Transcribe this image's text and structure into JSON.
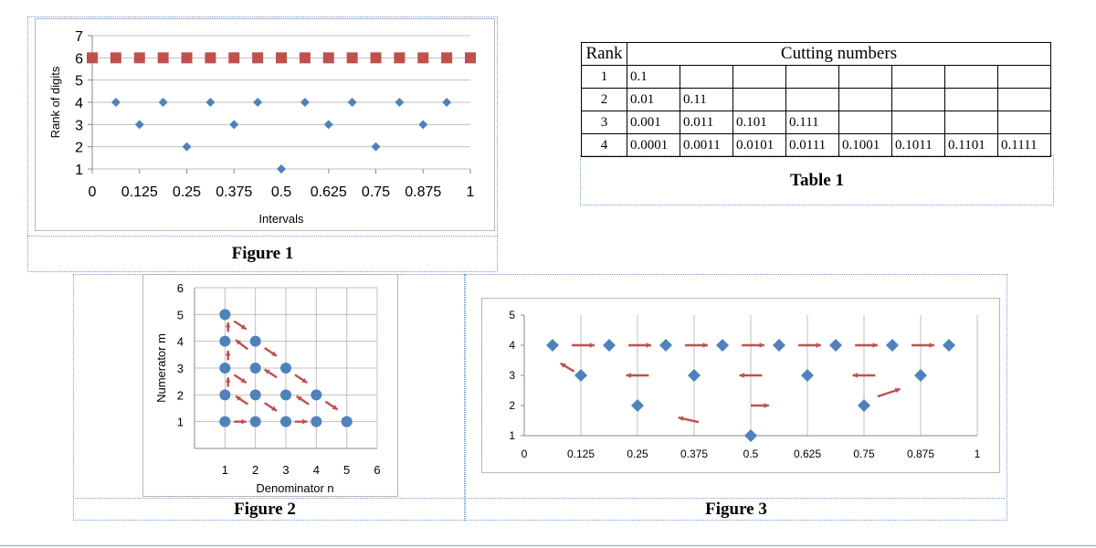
{
  "figure1": {
    "caption": "Figure 1",
    "chart_data": {
      "type": "scatter",
      "xlabel": "Intervals",
      "ylabel": "Rank of digits",
      "xlim": [
        0,
        1
      ],
      "ylim": [
        1,
        7
      ],
      "x_ticks": [
        "0",
        "0.125",
        "0.25",
        "0.375",
        "0.5",
        "0.625",
        "0.75",
        "0.875",
        "1"
      ],
      "y_ticks": [
        "1",
        "2",
        "3",
        "4",
        "5",
        "6",
        "7"
      ],
      "grid": "horizontal",
      "series": [
        {
          "marker": "diamond",
          "color": "#4f81bd",
          "points": [
            [
              0.0625,
              4
            ],
            [
              0.125,
              3
            ],
            [
              0.1875,
              4
            ],
            [
              0.25,
              2
            ],
            [
              0.3125,
              4
            ],
            [
              0.375,
              3
            ],
            [
              0.4375,
              4
            ],
            [
              0.5,
              1
            ],
            [
              0.5625,
              4
            ],
            [
              0.625,
              3
            ],
            [
              0.6875,
              4
            ],
            [
              0.75,
              2
            ],
            [
              0.8125,
              4
            ],
            [
              0.875,
              3
            ],
            [
              0.9375,
              4
            ]
          ]
        },
        {
          "marker": "square",
          "color": "#c0504d",
          "points": [
            [
              0,
              6
            ],
            [
              0.0625,
              6
            ],
            [
              0.125,
              6
            ],
            [
              0.1875,
              6
            ],
            [
              0.25,
              6
            ],
            [
              0.3125,
              6
            ],
            [
              0.375,
              6
            ],
            [
              0.4375,
              6
            ],
            [
              0.5,
              6
            ],
            [
              0.5625,
              6
            ],
            [
              0.625,
              6
            ],
            [
              0.6875,
              6
            ],
            [
              0.75,
              6
            ],
            [
              0.8125,
              6
            ],
            [
              0.875,
              6
            ],
            [
              0.9375,
              6
            ],
            [
              1,
              6
            ]
          ]
        }
      ]
    }
  },
  "table1": {
    "caption": "Table 1",
    "header": [
      "Rank",
      "Cutting numbers"
    ],
    "rows": [
      {
        "rank": "1",
        "cells": [
          "0.1",
          "",
          "",
          "",
          "",
          "",
          "",
          ""
        ]
      },
      {
        "rank": "2",
        "cells": [
          "0.01",
          "0.11",
          "",
          "",
          "",
          "",
          "",
          ""
        ]
      },
      {
        "rank": "3",
        "cells": [
          "0.001",
          "0.011",
          "0.101",
          "0.111",
          "",
          "",
          "",
          ""
        ]
      },
      {
        "rank": "4",
        "cells": [
          "0.0001",
          "0.0011",
          "0.0101",
          "0.0111",
          "0.1001",
          "0.1011",
          "0.1101",
          "0.1111"
        ]
      }
    ]
  },
  "figure2": {
    "caption": "Figure 2",
    "chart_data": {
      "type": "scatter",
      "xlabel": "Denominator n",
      "ylabel": "Numerator m",
      "xlim": [
        0,
        6
      ],
      "ylim": [
        0,
        6
      ],
      "x_ticks": [
        "1",
        "2",
        "3",
        "4",
        "5",
        "6"
      ],
      "y_ticks": [
        "1",
        "2",
        "3",
        "4",
        "5",
        "6"
      ],
      "grid": "both",
      "point_color": "#4f81bd",
      "arrow_color": "#c0504d",
      "points": [
        [
          1,
          1
        ],
        [
          2,
          1
        ],
        [
          3,
          1
        ],
        [
          4,
          1
        ],
        [
          5,
          1
        ],
        [
          1,
          2
        ],
        [
          2,
          2
        ],
        [
          3,
          2
        ],
        [
          4,
          2
        ],
        [
          1,
          3
        ],
        [
          2,
          3
        ],
        [
          3,
          3
        ],
        [
          1,
          4
        ],
        [
          2,
          4
        ],
        [
          1,
          5
        ]
      ],
      "arrows": [
        [
          1.3,
          1.0,
          1.7,
          1.0
        ],
        [
          1.3,
          4.75,
          1.7,
          4.45
        ],
        [
          1.1,
          4.35,
          1.1,
          4.7
        ],
        [
          1.75,
          3.7,
          1.35,
          4.05
        ],
        [
          2.3,
          3.75,
          2.7,
          3.45
        ],
        [
          1.1,
          3.3,
          1.1,
          3.65
        ],
        [
          1.3,
          2.75,
          1.7,
          2.45
        ],
        [
          2.7,
          2.65,
          2.3,
          2.95
        ],
        [
          3.3,
          2.75,
          3.7,
          2.45
        ],
        [
          1.1,
          2.3,
          1.1,
          2.65
        ],
        [
          1.75,
          1.65,
          1.35,
          1.95
        ],
        [
          2.3,
          1.7,
          2.7,
          1.4
        ],
        [
          3.75,
          1.65,
          3.35,
          1.95
        ],
        [
          4.3,
          1.75,
          4.7,
          1.45
        ],
        [
          3.3,
          1.0,
          3.7,
          1.0
        ]
      ]
    }
  },
  "figure3": {
    "caption": "Figure 3",
    "chart_data": {
      "type": "scatter",
      "xlim": [
        0,
        1
      ],
      "ylim": [
        1,
        5
      ],
      "x_ticks": [
        "0",
        "0.125",
        "0.25",
        "0.375",
        "0.5",
        "0.625",
        "0.75",
        "0.875",
        "1"
      ],
      "y_ticks": [
        "1",
        "2",
        "3",
        "4",
        "5"
      ],
      "grid": "vertical",
      "point_color": "#4f81bd",
      "arrow_color": "#c0504d",
      "points": [
        [
          0.0625,
          4
        ],
        [
          0.125,
          3
        ],
        [
          0.1875,
          4
        ],
        [
          0.25,
          2
        ],
        [
          0.3125,
          4
        ],
        [
          0.375,
          3
        ],
        [
          0.4375,
          4
        ],
        [
          0.5,
          1
        ],
        [
          0.5625,
          4
        ],
        [
          0.625,
          3
        ],
        [
          0.6875,
          4
        ],
        [
          0.75,
          2
        ],
        [
          0.8125,
          4
        ],
        [
          0.875,
          3
        ],
        [
          0.9375,
          4
        ]
      ],
      "arrows": [
        [
          0.105,
          4,
          0.155,
          4
        ],
        [
          0.23,
          4,
          0.28,
          4
        ],
        [
          0.355,
          4,
          0.405,
          4
        ],
        [
          0.48,
          4,
          0.53,
          4
        ],
        [
          0.605,
          4,
          0.655,
          4
        ],
        [
          0.73,
          4,
          0.78,
          4
        ],
        [
          0.855,
          4,
          0.905,
          4
        ],
        [
          0.11,
          3.13,
          0.08,
          3.4
        ],
        [
          0.275,
          3,
          0.225,
          3
        ],
        [
          0.525,
          3,
          0.475,
          3
        ],
        [
          0.775,
          3,
          0.725,
          3
        ],
        [
          0.78,
          2.3,
          0.83,
          2.55
        ],
        [
          0.5,
          2,
          0.54,
          2
        ],
        [
          0.385,
          1.45,
          0.34,
          1.6
        ]
      ]
    }
  }
}
